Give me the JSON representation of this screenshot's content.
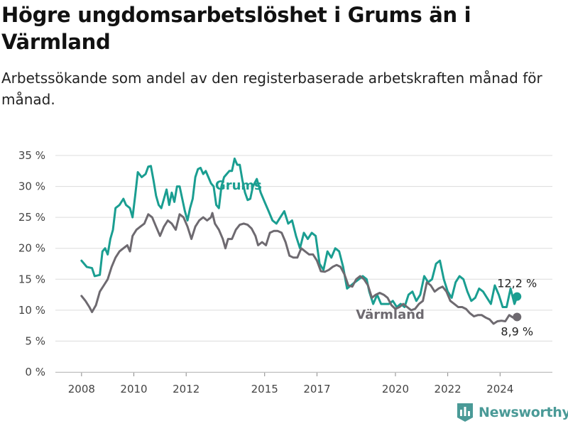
{
  "title": "Högre ungdomsarbetslöshet i Grums än i Värmland",
  "subtitle": "Arbetssökande som andel av den registerbaserade arbetskraften månad för månad.",
  "brand": {
    "name": "Newsworthy",
    "icon": "bar-chart-logo-icon"
  },
  "colors": {
    "grums": "#1a9e91",
    "varmland": "#6e6a70",
    "grid": "#dcdcdc",
    "axis": "#444444",
    "brand": "#4a9a97"
  },
  "chart_data": {
    "type": "line",
    "title": "Högre ungdomsarbetslöshet i Grums än i Värmland",
    "subtitle": "Arbetssökande som andel av den registerbaserade arbetskraften månad för månad.",
    "xlabel": "",
    "ylabel": "",
    "ylim": [
      0,
      35
    ],
    "yticks": [
      0,
      5,
      10,
      15,
      20,
      25,
      30,
      35
    ],
    "ytick_labels": [
      "0 %",
      "5 %",
      "10 %",
      "15 %",
      "20 %",
      "25 %",
      "30 %",
      "35 %"
    ],
    "xticks": [
      2008,
      2010,
      2012,
      2015,
      2017,
      2020,
      2022,
      2024
    ],
    "xtick_labels": [
      "2008",
      "2010",
      "2012",
      "2015",
      "2017",
      "2020",
      "2022",
      "2024"
    ],
    "grid": true,
    "series": [
      {
        "name": "Grums",
        "last_label": "12,2 %",
        "points": [
          [
            2008.0,
            18.0
          ],
          [
            2008.2,
            17.0
          ],
          [
            2008.4,
            16.8
          ],
          [
            2008.5,
            15.5
          ],
          [
            2008.7,
            15.7
          ],
          [
            2008.8,
            19.5
          ],
          [
            2008.9,
            20.0
          ],
          [
            2009.0,
            19.0
          ],
          [
            2009.1,
            21.5
          ],
          [
            2009.2,
            23.0
          ],
          [
            2009.3,
            26.5
          ],
          [
            2009.45,
            27.0
          ],
          [
            2009.6,
            28.0
          ],
          [
            2009.7,
            27.0
          ],
          [
            2009.85,
            26.5
          ],
          [
            2009.95,
            25.0
          ],
          [
            2010.05,
            28.5
          ],
          [
            2010.15,
            32.3
          ],
          [
            2010.3,
            31.5
          ],
          [
            2010.45,
            32.0
          ],
          [
            2010.55,
            33.2
          ],
          [
            2010.65,
            33.3
          ],
          [
            2010.75,
            31.0
          ],
          [
            2010.85,
            28.5
          ],
          [
            2010.95,
            27.0
          ],
          [
            2011.05,
            26.5
          ],
          [
            2011.15,
            28.0
          ],
          [
            2011.25,
            29.5
          ],
          [
            2011.35,
            27.0
          ],
          [
            2011.45,
            29.0
          ],
          [
            2011.55,
            27.5
          ],
          [
            2011.65,
            30.0
          ],
          [
            2011.75,
            30.0
          ],
          [
            2011.85,
            28.0
          ],
          [
            2011.95,
            26.0
          ],
          [
            2012.05,
            24.5
          ],
          [
            2012.15,
            26.5
          ],
          [
            2012.25,
            28.0
          ],
          [
            2012.35,
            31.5
          ],
          [
            2012.45,
            32.8
          ],
          [
            2012.55,
            33.0
          ],
          [
            2012.65,
            32.0
          ],
          [
            2012.75,
            32.5
          ],
          [
            2012.85,
            31.5
          ],
          [
            2012.95,
            30.5
          ],
          [
            2013.05,
            30.0
          ],
          [
            2013.15,
            27.0
          ],
          [
            2013.25,
            26.5
          ],
          [
            2013.35,
            30.0
          ],
          [
            2013.45,
            31.5
          ],
          [
            2013.55,
            32.0
          ],
          [
            2013.65,
            32.5
          ],
          [
            2013.75,
            32.5
          ],
          [
            2013.85,
            34.5
          ],
          [
            2013.95,
            33.5
          ],
          [
            2014.05,
            33.5
          ],
          [
            2014.15,
            31.0
          ],
          [
            2014.25,
            29.0
          ],
          [
            2014.35,
            27.8
          ],
          [
            2014.45,
            28.0
          ],
          [
            2014.55,
            30.0
          ],
          [
            2014.7,
            31.2
          ],
          [
            2014.85,
            29.0
          ],
          [
            2015.0,
            27.5
          ],
          [
            2015.15,
            26.0
          ],
          [
            2015.3,
            24.5
          ],
          [
            2015.45,
            24.0
          ],
          [
            2015.6,
            25.0
          ],
          [
            2015.75,
            26.0
          ],
          [
            2015.9,
            24.0
          ],
          [
            2016.05,
            24.5
          ],
          [
            2016.2,
            22.0
          ],
          [
            2016.35,
            20.0
          ],
          [
            2016.5,
            22.5
          ],
          [
            2016.65,
            21.5
          ],
          [
            2016.8,
            22.5
          ],
          [
            2016.95,
            22.0
          ],
          [
            2017.1,
            17.5
          ],
          [
            2017.25,
            16.5
          ],
          [
            2017.4,
            19.5
          ],
          [
            2017.55,
            18.5
          ],
          [
            2017.7,
            20.0
          ],
          [
            2017.85,
            19.5
          ],
          [
            2018.0,
            17.0
          ],
          [
            2018.15,
            13.5
          ],
          [
            2018.3,
            14.0
          ],
          [
            2018.45,
            14.5
          ],
          [
            2018.6,
            15.0
          ],
          [
            2018.75,
            15.5
          ],
          [
            2018.9,
            15.0
          ],
          [
            2019.0,
            13.0
          ],
          [
            2019.15,
            11.0
          ],
          [
            2019.3,
            12.5
          ],
          [
            2019.45,
            11.0
          ],
          [
            2019.6,
            11.0
          ],
          [
            2019.75,
            11.0
          ],
          [
            2019.9,
            11.5
          ],
          [
            2020.05,
            10.5
          ],
          [
            2020.2,
            11.0
          ],
          [
            2020.35,
            10.5
          ],
          [
            2020.5,
            12.5
          ],
          [
            2020.65,
            13.0
          ],
          [
            2020.8,
            11.5
          ],
          [
            2020.95,
            12.5
          ],
          [
            2021.1,
            15.5
          ],
          [
            2021.25,
            14.5
          ],
          [
            2021.4,
            15.0
          ],
          [
            2021.55,
            17.5
          ],
          [
            2021.7,
            18.0
          ],
          [
            2021.85,
            15.0
          ],
          [
            2022.0,
            13.0
          ],
          [
            2022.15,
            12.0
          ],
          [
            2022.3,
            14.5
          ],
          [
            2022.45,
            15.5
          ],
          [
            2022.6,
            15.0
          ],
          [
            2022.75,
            13.0
          ],
          [
            2022.9,
            11.5
          ],
          [
            2023.05,
            12.0
          ],
          [
            2023.2,
            13.5
          ],
          [
            2023.35,
            13.0
          ],
          [
            2023.5,
            12.0
          ],
          [
            2023.65,
            11.0
          ],
          [
            2023.8,
            14.0
          ],
          [
            2023.95,
            12.5
          ],
          [
            2024.1,
            10.5
          ],
          [
            2024.25,
            10.5
          ],
          [
            2024.4,
            13.5
          ],
          [
            2024.55,
            11.0
          ],
          [
            2024.65,
            12.2
          ]
        ]
      },
      {
        "name": "Värmland",
        "last_label": "8,9 %",
        "points": [
          [
            2008.0,
            12.3
          ],
          [
            2008.15,
            11.5
          ],
          [
            2008.3,
            10.5
          ],
          [
            2008.4,
            9.7
          ],
          [
            2008.55,
            10.8
          ],
          [
            2008.7,
            13.0
          ],
          [
            2008.85,
            14.0
          ],
          [
            2009.0,
            15.0
          ],
          [
            2009.15,
            17.0
          ],
          [
            2009.3,
            18.5
          ],
          [
            2009.45,
            19.5
          ],
          [
            2009.6,
            20.0
          ],
          [
            2009.75,
            20.5
          ],
          [
            2009.85,
            19.5
          ],
          [
            2009.95,
            22.0
          ],
          [
            2010.1,
            23.0
          ],
          [
            2010.25,
            23.5
          ],
          [
            2010.4,
            24.0
          ],
          [
            2010.55,
            25.5
          ],
          [
            2010.7,
            25.0
          ],
          [
            2010.85,
            23.5
          ],
          [
            2011.0,
            22.0
          ],
          [
            2011.15,
            23.5
          ],
          [
            2011.3,
            24.5
          ],
          [
            2011.45,
            24.0
          ],
          [
            2011.6,
            23.0
          ],
          [
            2011.75,
            25.5
          ],
          [
            2011.9,
            25.0
          ],
          [
            2012.05,
            23.5
          ],
          [
            2012.2,
            21.5
          ],
          [
            2012.35,
            23.5
          ],
          [
            2012.5,
            24.5
          ],
          [
            2012.65,
            25.0
          ],
          [
            2012.8,
            24.5
          ],
          [
            2012.95,
            25.0
          ],
          [
            2013.0,
            25.7
          ],
          [
            2013.1,
            24.0
          ],
          [
            2013.25,
            23.0
          ],
          [
            2013.4,
            21.5
          ],
          [
            2013.5,
            20.0
          ],
          [
            2013.6,
            21.5
          ],
          [
            2013.75,
            21.5
          ],
          [
            2013.9,
            23.0
          ],
          [
            2014.05,
            23.8
          ],
          [
            2014.2,
            24.0
          ],
          [
            2014.35,
            23.8
          ],
          [
            2014.5,
            23.2
          ],
          [
            2014.65,
            22.0
          ],
          [
            2014.75,
            20.5
          ],
          [
            2014.9,
            21.0
          ],
          [
            2015.05,
            20.5
          ],
          [
            2015.2,
            22.5
          ],
          [
            2015.35,
            22.8
          ],
          [
            2015.5,
            22.8
          ],
          [
            2015.65,
            22.5
          ],
          [
            2015.8,
            21.0
          ],
          [
            2015.95,
            18.8
          ],
          [
            2016.1,
            18.5
          ],
          [
            2016.25,
            18.5
          ],
          [
            2016.4,
            20.0
          ],
          [
            2016.55,
            19.5
          ],
          [
            2016.7,
            19.0
          ],
          [
            2016.85,
            19.0
          ],
          [
            2017.0,
            18.0
          ],
          [
            2017.15,
            16.3
          ],
          [
            2017.3,
            16.2
          ],
          [
            2017.45,
            16.5
          ],
          [
            2017.6,
            17.0
          ],
          [
            2017.75,
            17.3
          ],
          [
            2017.9,
            17.0
          ],
          [
            2018.05,
            15.8
          ],
          [
            2018.2,
            14.0
          ],
          [
            2018.35,
            13.8
          ],
          [
            2018.5,
            15.0
          ],
          [
            2018.65,
            15.5
          ],
          [
            2018.8,
            15.0
          ],
          [
            2018.95,
            14.0
          ],
          [
            2019.1,
            12.0
          ],
          [
            2019.25,
            12.5
          ],
          [
            2019.4,
            12.8
          ],
          [
            2019.55,
            12.5
          ],
          [
            2019.7,
            12.0
          ],
          [
            2019.85,
            10.8
          ],
          [
            2020.0,
            10.2
          ],
          [
            2020.15,
            10.5
          ],
          [
            2020.3,
            11.0
          ],
          [
            2020.45,
            10.5
          ],
          [
            2020.6,
            10.0
          ],
          [
            2020.75,
            10.2
          ],
          [
            2020.9,
            11.0
          ],
          [
            2021.05,
            11.5
          ],
          [
            2021.2,
            14.5
          ],
          [
            2021.35,
            14.0
          ],
          [
            2021.5,
            13.0
          ],
          [
            2021.65,
            13.5
          ],
          [
            2021.8,
            13.8
          ],
          [
            2021.95,
            13.0
          ],
          [
            2022.1,
            11.5
          ],
          [
            2022.25,
            11.0
          ],
          [
            2022.4,
            10.5
          ],
          [
            2022.55,
            10.5
          ],
          [
            2022.7,
            10.2
          ],
          [
            2022.85,
            9.5
          ],
          [
            2023.0,
            9.0
          ],
          [
            2023.15,
            9.2
          ],
          [
            2023.3,
            9.2
          ],
          [
            2023.45,
            8.8
          ],
          [
            2023.6,
            8.5
          ],
          [
            2023.75,
            7.8
          ],
          [
            2023.9,
            8.2
          ],
          [
            2024.05,
            8.3
          ],
          [
            2024.2,
            8.2
          ],
          [
            2024.35,
            9.2
          ],
          [
            2024.5,
            8.8
          ],
          [
            2024.65,
            8.9
          ]
        ]
      }
    ]
  }
}
